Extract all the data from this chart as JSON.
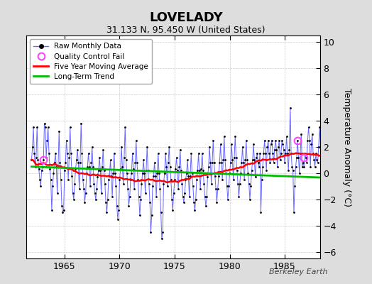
{
  "title": "LOVELADY",
  "subtitle": "31.133 N, 95.450 W (United States)",
  "ylabel": "Temperature Anomaly (°C)",
  "watermark": "Berkeley Earth",
  "ylim": [
    -6.5,
    10.5
  ],
  "xlim": [
    1961.5,
    1988.2
  ],
  "yticks": [
    -6,
    -4,
    -2,
    0,
    2,
    4,
    6,
    8,
    10
  ],
  "xticks": [
    1965,
    1970,
    1975,
    1980,
    1985
  ],
  "bg_color": "#e0e0e0",
  "plot_bg_color": "#ffffff",
  "raw_color": "#6666ff",
  "dot_color": "#000000",
  "ma_color": "#ff0000",
  "trend_color": "#00bb00",
  "qc_color": "#ff44ff",
  "title_fontsize": 13,
  "subtitle_fontsize": 9,
  "raw_data": [
    1.0,
    2.0,
    3.5,
    1.5,
    0.5,
    1.2,
    3.5,
    1.0,
    0.3,
    -0.5,
    -1.0,
    0.2,
    0.5,
    1.0,
    3.8,
    3.5,
    1.2,
    2.5,
    3.5,
    1.5,
    0.3,
    -0.5,
    -2.8,
    -1.0,
    0.0,
    0.8,
    1.5,
    0.5,
    -1.5,
    0.5,
    3.2,
    0.8,
    -0.5,
    -2.5,
    -3.0,
    -2.8,
    0.2,
    0.8,
    2.5,
    1.5,
    -0.5,
    1.2,
    3.5,
    1.5,
    -0.2,
    -1.5,
    -2.0,
    -0.8,
    0.3,
    1.0,
    1.8,
    0.8,
    -1.2,
    0.8,
    3.8,
    1.5,
    -0.5,
    -1.2,
    -2.2,
    -1.5,
    0.0,
    0.5,
    1.5,
    0.5,
    -1.0,
    0.8,
    2.0,
    0.5,
    -0.8,
    -1.5,
    -2.0,
    -1.2,
    -0.3,
    0.2,
    1.2,
    0.2,
    -1.5,
    0.5,
    1.8,
    0.2,
    -0.8,
    -2.2,
    -3.0,
    -2.0,
    -0.5,
    -0.2,
    1.0,
    -0.2,
    -1.8,
    0.0,
    1.5,
    0.0,
    -1.0,
    -2.5,
    -3.5,
    -2.8,
    -0.5,
    0.3,
    2.0,
    0.5,
    -0.8,
    1.2,
    3.5,
    1.0,
    0.0,
    -1.2,
    -2.5,
    -1.8,
    -0.5,
    0.0,
    1.5,
    0.3,
    -1.2,
    0.8,
    2.5,
    0.8,
    -0.5,
    -1.8,
    -3.2,
    -2.0,
    -0.8,
    0.0,
    1.0,
    0.0,
    -1.5,
    0.2,
    2.0,
    0.2,
    -0.8,
    -2.2,
    -4.5,
    -3.2,
    -1.0,
    -0.2,
    0.8,
    -0.2,
    -1.8,
    0.0,
    1.5,
    0.0,
    -1.2,
    -3.0,
    -5.0,
    -4.5,
    -0.8,
    0.0,
    1.5,
    0.5,
    -1.0,
    0.8,
    2.0,
    0.5,
    -0.5,
    -2.0,
    -2.8,
    -1.5,
    -0.5,
    0.3,
    1.2,
    0.2,
    -1.2,
    0.5,
    1.8,
    0.2,
    -0.8,
    -1.8,
    -2.2,
    -1.5,
    -0.5,
    0.0,
    1.0,
    -0.2,
    -1.8,
    -0.2,
    1.5,
    0.0,
    -1.0,
    -2.2,
    -2.8,
    -2.0,
    -0.5,
    0.2,
    1.5,
    0.2,
    -1.2,
    0.3,
    1.5,
    0.2,
    -0.8,
    -1.8,
    -2.5,
    -1.8,
    -0.3,
    0.5,
    2.0,
    0.8,
    -0.8,
    0.8,
    2.5,
    0.8,
    -0.2,
    -1.2,
    -2.2,
    -1.2,
    -0.2,
    0.8,
    2.2,
    0.8,
    -0.5,
    1.0,
    2.8,
    1.0,
    0.0,
    -1.0,
    -2.0,
    -1.0,
    0.0,
    0.8,
    2.2,
    1.0,
    -0.5,
    1.2,
    2.8,
    1.2,
    0.2,
    -0.8,
    -1.8,
    -0.8,
    0.0,
    0.8,
    2.0,
    0.8,
    -0.5,
    1.0,
    2.5,
    1.0,
    0.0,
    -0.8,
    -2.0,
    -1.0,
    0.2,
    1.0,
    2.2,
    1.0,
    -0.3,
    1.2,
    1.5,
    0.8,
    0.5,
    1.5,
    -3.0,
    -0.5,
    0.5,
    1.5,
    2.5,
    1.5,
    0.2,
    2.0,
    2.5,
    1.5,
    0.8,
    2.2,
    2.5,
    1.5,
    0.8,
    1.8,
    2.5,
    1.8,
    0.5,
    2.0,
    2.5,
    1.0,
    1.5,
    2.5,
    2.2,
    1.8,
    0.8,
    1.5,
    2.8,
    1.5,
    0.2,
    1.8,
    5.0,
    1.5,
    0.5,
    0.2,
    -3.0,
    -1.0,
    0.5,
    1.2,
    2.5,
    1.2,
    0.0,
    1.5,
    3.0,
    0.5,
    0.8,
    0.5,
    1.5,
    1.2,
    0.8,
    2.5,
    3.5,
    2.5,
    0.5,
    2.2,
    3.0,
    1.5,
    1.0,
    0.5,
    1.5,
    1.0,
    0.8,
    2.0,
    3.5,
    2.0,
    0.5,
    2.2,
    3.5,
    2.0,
    1.0,
    1.0,
    1.5,
    1.5
  ],
  "qc_fail_times": [
    1963.08,
    1986.17,
    1986.75
  ],
  "qc_fail_values": [
    1.0,
    2.5,
    1.2
  ],
  "start_year": 1962,
  "start_month": 1
}
